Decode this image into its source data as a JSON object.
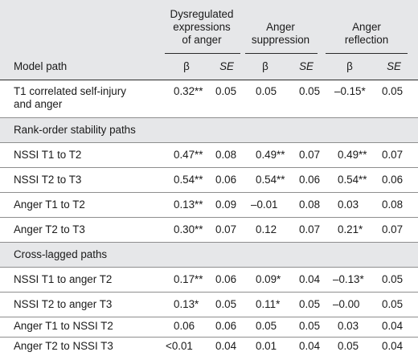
{
  "header": {
    "model_path": "Model path",
    "groups": [
      {
        "line1": "Dysregulated",
        "line2": "expressions",
        "line3": "of anger"
      },
      {
        "line1": "Anger",
        "line2": "suppression"
      },
      {
        "line1": "Anger",
        "line2": "reflection"
      }
    ],
    "beta": "β",
    "se": "SE"
  },
  "rows": [
    {
      "label1": "T1 correlated self-injury",
      "label2": "and anger",
      "v": [
        "0.32**",
        "0.05",
        "0.05",
        "0.05",
        "–0.15*",
        "0.05"
      ]
    },
    {
      "section": "Rank-order stability paths"
    },
    {
      "label1": "NSSI T1 to T2",
      "v": [
        "0.47**",
        "0.08",
        "0.49**",
        "0.07",
        "0.49**",
        "0.07"
      ]
    },
    {
      "label1": "NSSI T2 to T3",
      "v": [
        "0.54**",
        "0.06",
        "0.54**",
        "0.06",
        "0.54**",
        "0.06"
      ]
    },
    {
      "label1": "Anger T1 to T2",
      "v": [
        "0.13**",
        "0.09",
        "–0.01",
        "0.08",
        "0.03",
        "0.08"
      ]
    },
    {
      "label1": "Anger T2 to T3",
      "v": [
        "0.30**",
        "0.07",
        "0.12",
        "0.07",
        "0.21*",
        "0.07"
      ]
    },
    {
      "section": "Cross-lagged paths"
    },
    {
      "label1": "NSSI T1 to anger T2",
      "v": [
        "0.17**",
        "0.06",
        "0.09*",
        "0.04",
        "–0.13*",
        "0.05"
      ]
    },
    {
      "label1": "NSSI T2 to anger T3",
      "v": [
        "0.13*",
        "0.05",
        "0.11*",
        "0.05",
        "–0.00",
        "0.05"
      ]
    },
    {
      "label1": "Anger T1 to NSSI T2",
      "v": [
        "0.06",
        "0.06",
        "0.05",
        "0.05",
        "0.03",
        "0.04"
      ]
    },
    {
      "label1": "Anger T2 to NSSI T3",
      "v": [
        "<0.01",
        "0.04",
        "0.01",
        "0.04",
        "0.05",
        "0.04"
      ]
    }
  ]
}
